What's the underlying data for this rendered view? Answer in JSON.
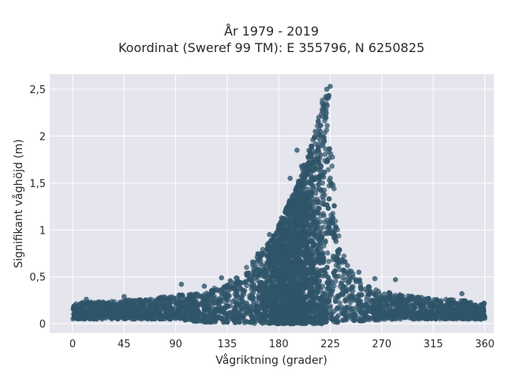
{
  "title_line1": "År 1979 - 2019",
  "title_line2": "Koordinat (Sweref 99 TM): E 355796, N 6250825",
  "colors": {
    "plot_bg": "#e5e5ee",
    "grid": "#ffffff",
    "marker": "#2f5469"
  },
  "chart_data": {
    "type": "scatter",
    "title": "År 1979 - 2019\nKoordinat (Sweref 99 TM): E 355796, N 6250825",
    "xlabel": "Vågriktning (grader)",
    "ylabel": "Signifikant våghöjd (m)",
    "xlim": [
      -20,
      368
    ],
    "ylim": [
      -0.1,
      2.66
    ],
    "xticks": [
      0,
      45,
      90,
      135,
      180,
      225,
      270,
      315,
      360
    ],
    "xtick_labels": [
      "0",
      "45",
      "90",
      "135",
      "180",
      "225",
      "270",
      "315",
      "360"
    ],
    "yticks": [
      0,
      0.5,
      1,
      1.5,
      2,
      2.5
    ],
    "ytick_labels": [
      "0",
      "0,5",
      "1",
      "1,5",
      "2",
      "2,5"
    ],
    "grid": true,
    "legend": "none",
    "series": [
      {
        "marker_color": "#2f5469",
        "envelope": {
          "direction": [
            0,
            30,
            60,
            90,
            110,
            130,
            145,
            160,
            175,
            185,
            195,
            205,
            212,
            218,
            222,
            225,
            230,
            240,
            255,
            270,
            290,
            315,
            340,
            360
          ],
          "max_height": [
            0.22,
            0.24,
            0.26,
            0.3,
            0.33,
            0.4,
            0.52,
            0.72,
            0.92,
            1.2,
            1.45,
            1.8,
            2.1,
            2.4,
            2.52,
            2.5,
            1.1,
            0.62,
            0.42,
            0.35,
            0.3,
            0.27,
            0.25,
            0.22
          ],
          "min_height": [
            0.05,
            0.05,
            0.05,
            0.05,
            0.02,
            0.01,
            0.01,
            0.0,
            0.0,
            0.0,
            0.0,
            0.0,
            0.0,
            0.0,
            0.01,
            0.01,
            0.01,
            0.02,
            0.03,
            0.04,
            0.05,
            0.05,
            0.05,
            0.05
          ]
        },
        "highlighted_points": [
          {
            "x": 225,
            "y": 2.53
          },
          {
            "x": 222,
            "y": 2.5
          },
          {
            "x": 218,
            "y": 2.35
          },
          {
            "x": 215,
            "y": 2.2
          },
          {
            "x": 212,
            "y": 2.05
          },
          {
            "x": 196,
            "y": 1.85
          },
          {
            "x": 200,
            "y": 1.68
          },
          {
            "x": 205,
            "y": 1.62
          },
          {
            "x": 190,
            "y": 1.55
          },
          {
            "x": 188,
            "y": 1.25
          },
          {
            "x": 180,
            "y": 1.05
          },
          {
            "x": 172,
            "y": 0.95
          },
          {
            "x": 165,
            "y": 0.75
          },
          {
            "x": 240,
            "y": 0.62
          },
          {
            "x": 250,
            "y": 0.55
          },
          {
            "x": 282,
            "y": 0.47
          },
          {
            "x": 264,
            "y": 0.48
          },
          {
            "x": 130,
            "y": 0.49
          },
          {
            "x": 115,
            "y": 0.4
          },
          {
            "x": 95,
            "y": 0.42
          },
          {
            "x": 45,
            "y": 0.29
          },
          {
            "x": 340,
            "y": 0.32
          },
          {
            "x": 12,
            "y": 0.26
          }
        ]
      }
    ]
  }
}
